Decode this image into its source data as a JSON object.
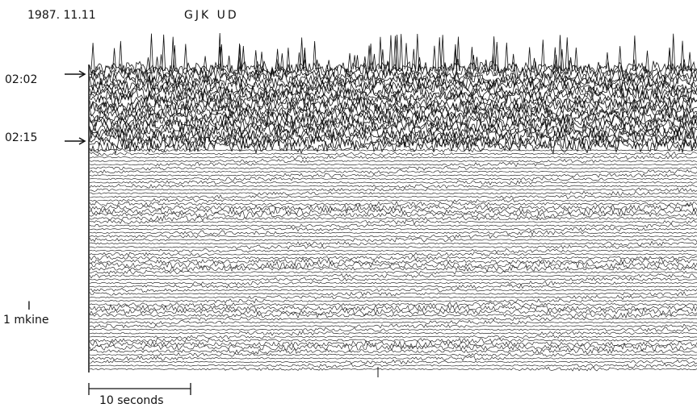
{
  "header": {
    "date": "1987. 11.11",
    "station": "GJK UD"
  },
  "markers": [
    {
      "label": "02:02"
    },
    {
      "label": "02:15"
    }
  ],
  "amplitude_scale": {
    "symbol": "I",
    "label": "1 mkine"
  },
  "time_scale": {
    "label": "10 seconds"
  }
}
